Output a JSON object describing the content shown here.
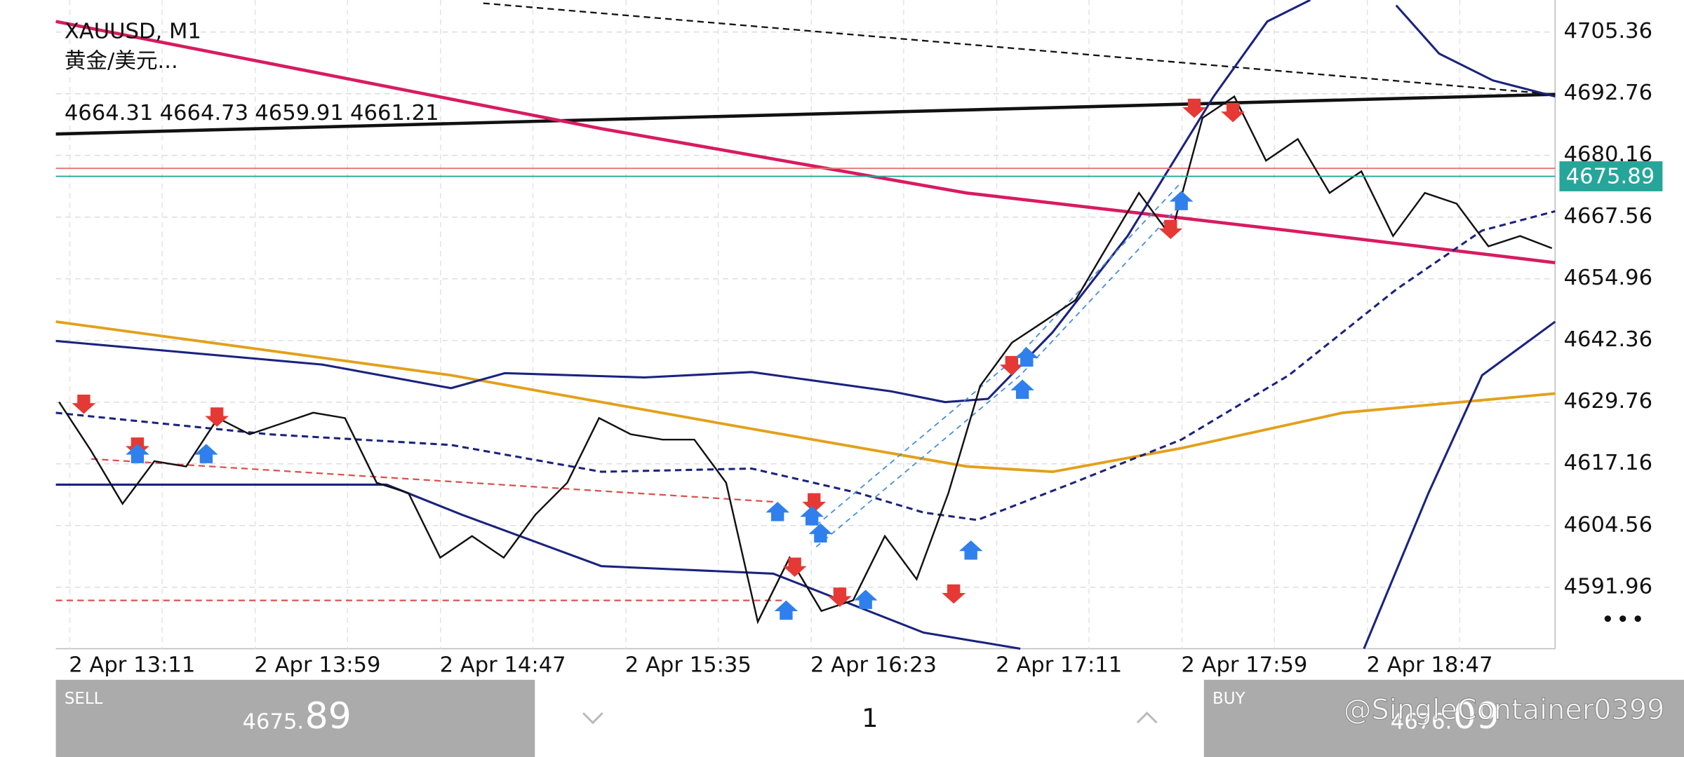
{
  "header": {
    "symbol": "XAUUSD, M1",
    "description": "黄金/美元..."
  },
  "chart_data": {
    "type": "line",
    "ohlc": {
      "open": 4664.31,
      "high": 4664.73,
      "low": 4659.91,
      "close": 4661.21
    },
    "time_labels": [
      "2 Apr 13:11",
      "2 Apr 13:59",
      "2 Apr 14:47",
      "2 Apr 15:35",
      "2 Apr 16:23",
      "2 Apr 17:11",
      "2 Apr 17:59",
      "2 Apr 18:47"
    ],
    "values": [
      4629.8,
      4619.9,
      4609.0,
      4617.7,
      4616.6,
      4626.5,
      4623.2,
      4625.4,
      4627.6,
      4626.5,
      4613.3,
      4611.2,
      4598.0,
      4602.4,
      4598.0,
      4606.8,
      4613.3,
      4626.5,
      4623.2,
      4622.1,
      4622.1,
      4613.3,
      4584.9,
      4598.0,
      4587.1,
      4589.3,
      4602.4,
      4593.6,
      4611.2,
      4633.1,
      4641.9,
      4646.2,
      4650.6,
      4661.6,
      4672.5,
      4663.7,
      4687.8,
      4692.2,
      4679.1,
      4683.5,
      4672.5,
      4676.9,
      4663.7,
      4672.5,
      4670.3,
      4661.6,
      4663.7,
      4661.21
    ],
    "color": "#111111",
    "ylim": [
      4579.4,
      4711.9
    ],
    "yticks": [
      4705.36,
      4692.76,
      4680.16,
      4667.56,
      4654.96,
      4642.36,
      4629.76,
      4617.16,
      4604.56,
      4591.96
    ],
    "current_price": 4675.89,
    "grid": true
  },
  "trade_panel": {
    "sell": {
      "label": "SELL",
      "price_main": "4675.",
      "price_fraction": "89"
    },
    "volume": "1",
    "buy": {
      "label": "BUY",
      "price_main": "4676.",
      "price_fraction": "09"
    }
  },
  "watermark": "@SingleContainer0399"
}
